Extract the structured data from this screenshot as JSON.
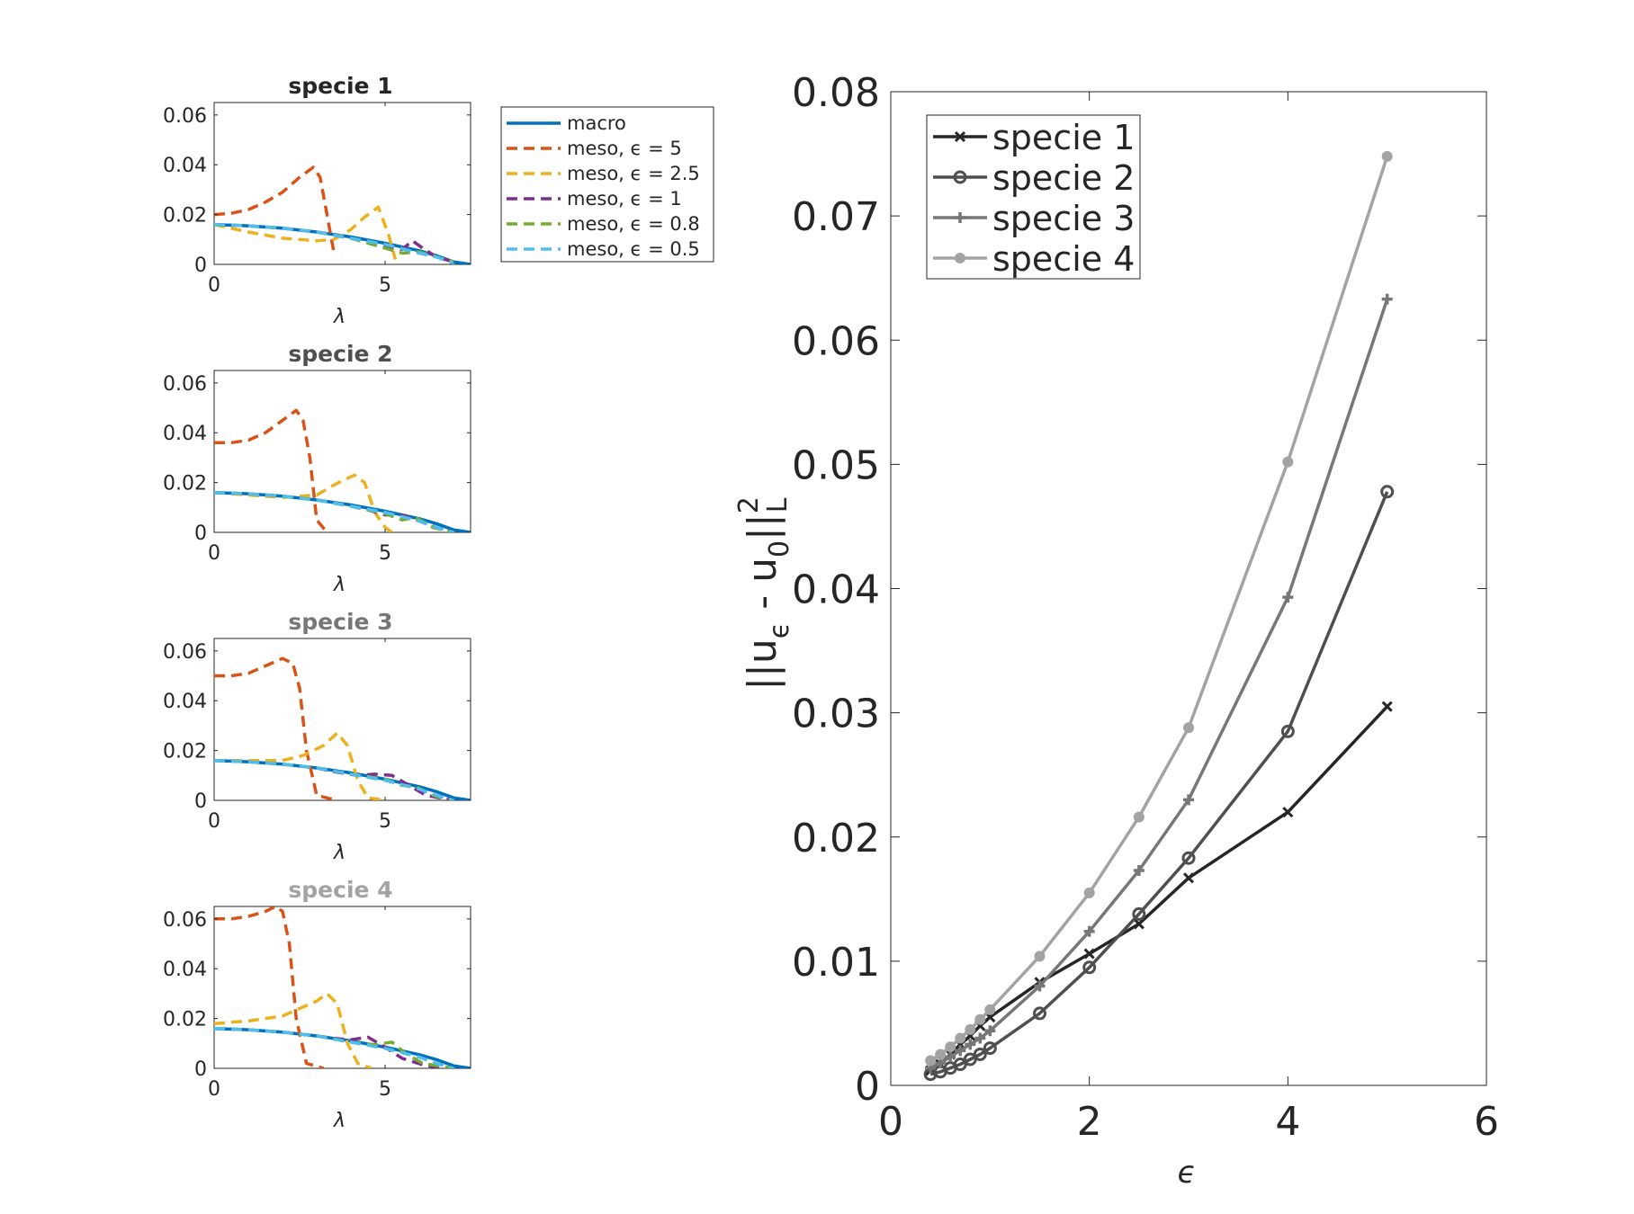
{
  "chart_data": [
    {
      "type": "line",
      "title": "specie 1",
      "title_color": "#262626",
      "xlabel": "λ",
      "ylabel": "",
      "xlim": [
        0,
        7.5
      ],
      "ylim": [
        0,
        0.065
      ],
      "xticks": [
        "0",
        "5"
      ],
      "yticks": [
        "0",
        "0.02",
        "0.04",
        "0.06"
      ],
      "grid": false,
      "legend": "outside-right",
      "legend_entries": [
        "macro",
        "meso, ϵ = 5",
        "meso, ϵ = 2.5",
        "meso, ϵ = 1",
        "meso, ϵ = 0.8",
        "meso, ϵ = 0.5"
      ],
      "series": [
        {
          "name": "macro",
          "color": "#0072bd",
          "dash": false,
          "x": [
            0,
            1,
            2,
            3,
            4,
            5,
            6,
            6.5,
            7,
            7.5
          ],
          "y": [
            0.016,
            0.0155,
            0.0145,
            0.013,
            0.011,
            0.0085,
            0.0055,
            0.0035,
            0.001,
            0
          ]
        },
        {
          "name": "meso, ϵ = 5",
          "color": "#d95319",
          "dash": true,
          "x": [
            0,
            0.5,
            1,
            1.5,
            2,
            2.5,
            2.9,
            3.1,
            3.3,
            3.5
          ],
          "y": [
            0.02,
            0.0205,
            0.022,
            0.025,
            0.029,
            0.035,
            0.039,
            0.035,
            0.02,
            0.005
          ]
        },
        {
          "name": "meso, ϵ = 2.5",
          "color": "#edb120",
          "dash": true,
          "x": [
            0,
            1,
            2,
            3,
            3.5,
            4,
            4.4,
            4.8,
            5.1,
            5.3
          ],
          "y": [
            0.016,
            0.013,
            0.0105,
            0.0095,
            0.01,
            0.014,
            0.019,
            0.023,
            0.012,
            0.002
          ]
        },
        {
          "name": "meso, ϵ = 1",
          "color": "#7e2f8e",
          "dash": true,
          "x": [
            0,
            1,
            2,
            3,
            4,
            4.5,
            5,
            5.5,
            5.8,
            6.1,
            6.5,
            7
          ],
          "y": [
            0.016,
            0.0155,
            0.0145,
            0.013,
            0.0105,
            0.009,
            0.007,
            0.006,
            0.0095,
            0.0065,
            0.003,
            0.001
          ]
        },
        {
          "name": "meso, ϵ = 0.8",
          "color": "#77ac30",
          "dash": true,
          "x": [
            0,
            1,
            2,
            3,
            4,
            5,
            5.5,
            6,
            6.5,
            7
          ],
          "y": [
            0.016,
            0.0155,
            0.0145,
            0.013,
            0.0105,
            0.0065,
            0.0045,
            0.005,
            0.003,
            0.001
          ]
        },
        {
          "name": "meso, ϵ = 0.5",
          "color": "#4dbeee",
          "dash": true,
          "x": [
            0,
            1,
            2,
            3,
            4,
            5,
            6,
            6.5,
            7
          ],
          "y": [
            0.016,
            0.0155,
            0.0145,
            0.013,
            0.0105,
            0.008,
            0.0045,
            0.003,
            0.0005
          ]
        }
      ]
    },
    {
      "type": "line",
      "title": "specie 2",
      "title_color": "#4f4f4f",
      "xlabel": "λ",
      "ylabel": "",
      "xlim": [
        0,
        7.5
      ],
      "ylim": [
        0,
        0.065
      ],
      "xticks": [
        "0",
        "5"
      ],
      "yticks": [
        "0",
        "0.02",
        "0.04",
        "0.06"
      ],
      "grid": false,
      "series": [
        {
          "name": "macro",
          "color": "#0072bd",
          "dash": false,
          "x": [
            0,
            1,
            2,
            3,
            4,
            5,
            6,
            6.5,
            7,
            7.5
          ],
          "y": [
            0.016,
            0.0155,
            0.0145,
            0.013,
            0.011,
            0.0085,
            0.0055,
            0.0035,
            0.001,
            0
          ]
        },
        {
          "name": "meso, ϵ = 5",
          "color": "#d95319",
          "dash": true,
          "x": [
            0,
            0.5,
            1,
            1.5,
            2,
            2.4,
            2.6,
            2.8,
            3.0,
            3.3
          ],
          "y": [
            0.036,
            0.036,
            0.037,
            0.04,
            0.045,
            0.049,
            0.045,
            0.03,
            0.005,
            0
          ]
        },
        {
          "name": "meso, ϵ = 2.5",
          "color": "#edb120",
          "dash": true,
          "x": [
            0,
            1,
            2,
            3,
            3.5,
            4.1,
            4.4,
            4.7,
            5.0,
            5.2
          ],
          "y": [
            0.016,
            0.015,
            0.014,
            0.015,
            0.019,
            0.023,
            0.02,
            0.008,
            0.002,
            0
          ]
        },
        {
          "name": "meso, ϵ = 1",
          "color": "#7e2f8e",
          "dash": true,
          "x": [
            0,
            1,
            2,
            3,
            4,
            4.5,
            5,
            5.5,
            6,
            6.5,
            7
          ],
          "y": [
            0.016,
            0.0155,
            0.0145,
            0.013,
            0.0105,
            0.009,
            0.007,
            0.007,
            0.0045,
            0.002,
            0
          ]
        },
        {
          "name": "meso, ϵ = 0.8",
          "color": "#77ac30",
          "dash": true,
          "x": [
            0,
            1,
            2,
            3,
            4,
            5,
            5.5,
            5.9,
            6.4,
            7
          ],
          "y": [
            0.016,
            0.0155,
            0.0145,
            0.013,
            0.0105,
            0.0075,
            0.005,
            0.006,
            0.002,
            0
          ]
        },
        {
          "name": "meso, ϵ = 0.5",
          "color": "#4dbeee",
          "dash": true,
          "x": [
            0,
            1,
            2,
            3,
            4,
            5,
            6,
            6.5,
            7
          ],
          "y": [
            0.016,
            0.0155,
            0.0145,
            0.013,
            0.0105,
            0.008,
            0.0045,
            0.002,
            0
          ]
        }
      ]
    },
    {
      "type": "line",
      "title": "specie 3",
      "title_color": "#777777",
      "xlabel": "λ",
      "ylabel": "",
      "xlim": [
        0,
        7.5
      ],
      "ylim": [
        0,
        0.065
      ],
      "xticks": [
        "0",
        "5"
      ],
      "yticks": [
        "0",
        "0.02",
        "0.04",
        "0.06"
      ],
      "grid": false,
      "series": [
        {
          "name": "macro",
          "color": "#0072bd",
          "dash": false,
          "x": [
            0,
            1,
            2,
            3,
            4,
            5,
            6,
            6.5,
            7,
            7.5
          ],
          "y": [
            0.016,
            0.0155,
            0.0145,
            0.013,
            0.011,
            0.0085,
            0.0055,
            0.0035,
            0.001,
            0
          ]
        },
        {
          "name": "meso, ϵ = 5",
          "color": "#d95319",
          "dash": true,
          "x": [
            0,
            0.5,
            1,
            1.5,
            2,
            2.3,
            2.5,
            2.7,
            3.0,
            3.6
          ],
          "y": [
            0.05,
            0.05,
            0.051,
            0.054,
            0.057,
            0.055,
            0.045,
            0.02,
            0.002,
            0
          ]
        },
        {
          "name": "meso, ϵ = 2.5",
          "color": "#edb120",
          "dash": true,
          "x": [
            0,
            1,
            2,
            2.6,
            3.2,
            3.6,
            3.9,
            4.2,
            4.5,
            5.0
          ],
          "y": [
            0.016,
            0.016,
            0.016,
            0.018,
            0.022,
            0.027,
            0.022,
            0.008,
            0.001,
            0
          ]
        },
        {
          "name": "meso, ϵ = 1",
          "color": "#7e2f8e",
          "dash": true,
          "x": [
            0,
            1,
            2,
            3,
            3.5,
            4.2,
            4.7,
            5.2,
            5.7,
            6.2,
            7
          ],
          "y": [
            0.016,
            0.0155,
            0.0145,
            0.013,
            0.0115,
            0.01,
            0.0105,
            0.01,
            0.006,
            0.002,
            0
          ]
        },
        {
          "name": "meso, ϵ = 0.8",
          "color": "#77ac30",
          "dash": true,
          "x": [
            0,
            1,
            2,
            3,
            4,
            5,
            5.5,
            5.9,
            6.4,
            7
          ],
          "y": [
            0.016,
            0.0155,
            0.0145,
            0.013,
            0.0105,
            0.0085,
            0.006,
            0.0055,
            0.002,
            0
          ]
        },
        {
          "name": "meso, ϵ = 0.5",
          "color": "#4dbeee",
          "dash": true,
          "x": [
            0,
            1,
            2,
            3,
            4,
            5,
            6,
            6.5,
            7
          ],
          "y": [
            0.016,
            0.0155,
            0.0145,
            0.013,
            0.0105,
            0.008,
            0.0045,
            0.002,
            0
          ]
        }
      ]
    },
    {
      "type": "line",
      "title": "specie 4",
      "title_color": "#a3a3a3",
      "xlabel": "λ",
      "ylabel": "",
      "xlim": [
        0,
        7.5
      ],
      "ylim": [
        0,
        0.065
      ],
      "xticks": [
        "0",
        "5"
      ],
      "yticks": [
        "0",
        "0.02",
        "0.04",
        "0.06"
      ],
      "grid": false,
      "series": [
        {
          "name": "macro",
          "color": "#0072bd",
          "dash": false,
          "x": [
            0,
            1,
            2,
            3,
            4,
            5,
            6,
            6.5,
            7,
            7.5
          ],
          "y": [
            0.016,
            0.0155,
            0.0145,
            0.013,
            0.011,
            0.0085,
            0.0055,
            0.0035,
            0.001,
            0
          ]
        },
        {
          "name": "meso, ϵ = 5",
          "color": "#d95319",
          "dash": true,
          "x": [
            0,
            0.5,
            1,
            1.5,
            1.8,
            2.0,
            2.2,
            2.4,
            2.7,
            3.2
          ],
          "y": [
            0.06,
            0.06,
            0.061,
            0.063,
            0.065,
            0.063,
            0.05,
            0.02,
            0.002,
            0
          ]
        },
        {
          "name": "meso, ϵ = 2.5",
          "color": "#edb120",
          "dash": true,
          "x": [
            0,
            1,
            2,
            2.5,
            3.0,
            3.3,
            3.6,
            3.9,
            4.2,
            4.6
          ],
          "y": [
            0.018,
            0.019,
            0.021,
            0.024,
            0.027,
            0.03,
            0.026,
            0.01,
            0.002,
            0
          ]
        },
        {
          "name": "meso, ϵ = 1",
          "color": "#7e2f8e",
          "dash": true,
          "x": [
            0,
            1,
            2,
            3,
            3.5,
            4.0,
            4.5,
            5.0,
            5.5,
            6.2,
            7
          ],
          "y": [
            0.016,
            0.0155,
            0.0145,
            0.013,
            0.012,
            0.0115,
            0.0125,
            0.0085,
            0.004,
            0.001,
            0
          ]
        },
        {
          "name": "meso, ϵ = 0.8",
          "color": "#77ac30",
          "dash": true,
          "x": [
            0,
            1,
            2,
            3,
            4,
            4.7,
            5.2,
            5.6,
            6.1,
            7
          ],
          "y": [
            0.016,
            0.0155,
            0.0145,
            0.013,
            0.0105,
            0.0095,
            0.0105,
            0.006,
            0.002,
            0
          ]
        },
        {
          "name": "meso, ϵ = 0.5",
          "color": "#4dbeee",
          "dash": true,
          "x": [
            0,
            1,
            2,
            3,
            4,
            5,
            6,
            6.5,
            7
          ],
          "y": [
            0.016,
            0.0155,
            0.0145,
            0.013,
            0.0105,
            0.008,
            0.0045,
            0.002,
            0
          ]
        }
      ]
    },
    {
      "type": "line",
      "title": "",
      "xlabel": "ϵ",
      "ylabel_main": "||u",
      "ylabel_sub_eps": "ϵ",
      "ylabel_mid": " - u",
      "ylabel_sub_zero": "0",
      "ylabel_end": "||",
      "ylabel_sup": "2",
      "ylabel_sub_L": "L",
      "xlim": [
        0,
        6
      ],
      "ylim": [
        0,
        0.08
      ],
      "xticks": [
        "0",
        "2",
        "4",
        "6"
      ],
      "yticks": [
        "0",
        "0.01",
        "0.02",
        "0.03",
        "0.04",
        "0.05",
        "0.06",
        "0.07",
        "0.08"
      ],
      "grid": false,
      "legend": "top-left",
      "x": [
        0.4,
        0.5,
        0.6,
        0.7,
        0.8,
        0.9,
        1,
        1.5,
        2,
        2.5,
        3,
        4,
        5
      ],
      "series": [
        {
          "name": "specie 1",
          "color": "#262626",
          "marker": "x",
          "y": [
            0.0012,
            0.0017,
            0.0025,
            0.0033,
            0.004,
            0.0048,
            0.0055,
            0.0083,
            0.0106,
            0.013,
            0.0167,
            0.022,
            0.0305
          ]
        },
        {
          "name": "specie 2",
          "color": "#4f4f4f",
          "marker": "o",
          "y": [
            0.0009,
            0.0011,
            0.0014,
            0.0017,
            0.0021,
            0.0025,
            0.003,
            0.0058,
            0.0095,
            0.0138,
            0.0183,
            0.0285,
            0.0478
          ]
        },
        {
          "name": "specie 3",
          "color": "#777777",
          "marker": "+",
          "y": [
            0.0014,
            0.0018,
            0.0023,
            0.0028,
            0.0033,
            0.0038,
            0.0044,
            0.008,
            0.0124,
            0.0173,
            0.023,
            0.0393,
            0.0633
          ]
        },
        {
          "name": "specie 4",
          "color": "#a3a3a3",
          "marker": "dot",
          "y": [
            0.002,
            0.0025,
            0.0031,
            0.0038,
            0.0045,
            0.0053,
            0.0061,
            0.0104,
            0.0155,
            0.0216,
            0.0288,
            0.0502,
            0.0748
          ]
        }
      ]
    }
  ]
}
